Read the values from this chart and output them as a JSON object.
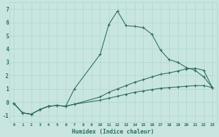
{
  "xlabel": "Humidex (Indice chaleur)",
  "bg_color": "#c8e6df",
  "line_color": "#2d6b5e",
  "grid_color": "#aed4cc",
  "xlim": [
    -0.5,
    23.5
  ],
  "ylim": [
    -1.5,
    7.5
  ],
  "yticks": [
    -1,
    0,
    1,
    2,
    3,
    4,
    5,
    6,
    7
  ],
  "xticks": [
    0,
    1,
    2,
    3,
    4,
    5,
    6,
    7,
    8,
    9,
    10,
    11,
    12,
    13,
    14,
    15,
    16,
    17,
    18,
    19,
    20,
    21,
    22,
    23
  ],
  "line1_x": [
    0,
    1,
    2,
    3,
    4,
    5,
    6,
    7,
    10,
    11,
    12,
    13,
    14,
    15,
    16,
    17,
    18,
    19,
    20,
    21,
    22,
    23
  ],
  "line1_y": [
    -0.1,
    -0.8,
    -0.9,
    -0.55,
    -0.3,
    -0.25,
    -0.3,
    1.0,
    3.6,
    5.85,
    6.85,
    5.75,
    5.7,
    5.6,
    5.1,
    3.9,
    3.2,
    3.0,
    2.6,
    2.4,
    1.9,
    1.1
  ],
  "line2_x": [
    0,
    1,
    2,
    3,
    4,
    5,
    6,
    7,
    10,
    11,
    12,
    13,
    14,
    15,
    16,
    17,
    18,
    19,
    20,
    21,
    22,
    23
  ],
  "line2_y": [
    -0.1,
    -0.8,
    -0.9,
    -0.55,
    -0.3,
    -0.25,
    -0.3,
    -0.15,
    0.4,
    0.75,
    1.0,
    1.25,
    1.5,
    1.7,
    1.9,
    2.1,
    2.2,
    2.35,
    2.5,
    2.55,
    2.4,
    1.1
  ],
  "line3_x": [
    0,
    1,
    2,
    3,
    4,
    5,
    6,
    7,
    10,
    11,
    12,
    13,
    14,
    15,
    16,
    17,
    18,
    19,
    20,
    21,
    22,
    23
  ],
  "line3_y": [
    -0.1,
    -0.8,
    -0.9,
    -0.55,
    -0.3,
    -0.25,
    -0.3,
    -0.15,
    0.15,
    0.3,
    0.45,
    0.6,
    0.75,
    0.85,
    0.95,
    1.05,
    1.1,
    1.15,
    1.2,
    1.25,
    1.25,
    1.1
  ]
}
